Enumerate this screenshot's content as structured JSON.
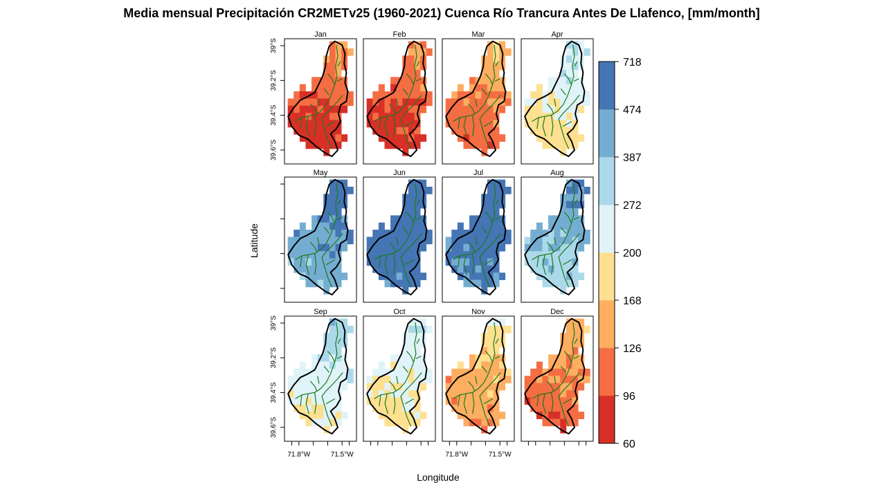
{
  "chart_data": {
    "type": "heatmap",
    "title": "Media mensual Precipitación CR2METv25 (1960-2021) Cuenca Río Trancura Antes De Llafenco, [mm/month]",
    "xlabel": "Longitude",
    "ylabel": "Latitude",
    "panels": [
      {
        "name": "Jan",
        "bin": 0.6
      },
      {
        "name": "Feb",
        "bin": 0.6
      },
      {
        "name": "Mar",
        "bin": 1.4
      },
      {
        "name": "Apr",
        "bin": 3.6
      },
      {
        "name": "May",
        "bin": 6.3
      },
      {
        "name": "Jun",
        "bin": 7.3
      },
      {
        "name": "Jul",
        "bin": 7.0
      },
      {
        "name": "Aug",
        "bin": 5.6
      },
      {
        "name": "Sep",
        "bin": 4.1
      },
      {
        "name": "Oct",
        "bin": 3.6
      },
      {
        "name": "Nov",
        "bin": 2.2
      },
      {
        "name": "Dec",
        "bin": 1.3
      }
    ],
    "x_ticks": [
      "71.8°W",
      "71.5°W"
    ],
    "x_tick_values": [
      -71.8,
      -71.5
    ],
    "y_ticks": [
      "39°S",
      "39.2°S",
      "39.4°S",
      "39.6°S"
    ],
    "y_tick_values": [
      -39.0,
      -39.2,
      -39.4,
      -39.6
    ],
    "xlim": [
      -71.9,
      -71.4
    ],
    "ylim": [
      -39.68,
      -38.96
    ],
    "colorbar": {
      "breaks": [
        "60",
        "96",
        "126",
        "168",
        "200",
        "272",
        "387",
        "474",
        "718"
      ],
      "colors": [
        "#d73027",
        "#f46d43",
        "#fdae61",
        "#fee090",
        "#e0f3f8",
        "#abd9e9",
        "#74add1",
        "#4575b4"
      ]
    }
  }
}
